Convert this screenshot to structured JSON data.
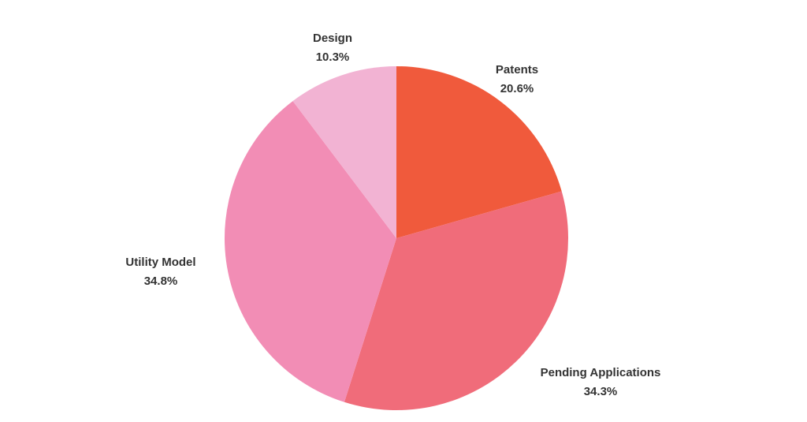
{
  "chart_data": {
    "type": "pie",
    "start_angle": "top, clockwise",
    "slices": [
      {
        "label": "Patents",
        "value": 20.6,
        "value_label": "20.6%",
        "color": "#F05A3C"
      },
      {
        "label": "Pending Applications",
        "value": 34.3,
        "value_label": "34.3%",
        "color": "#F06C7A"
      },
      {
        "label": "Utility Model",
        "value": 34.8,
        "value_label": "34.8%",
        "color": "#F28DB5"
      },
      {
        "label": "Design",
        "value": 10.3,
        "value_label": "10.3%",
        "color": "#F2B3D3"
      }
    ]
  }
}
